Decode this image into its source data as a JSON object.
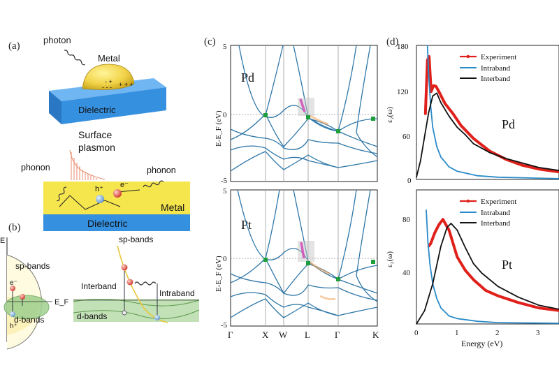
{
  "panel_labels": {
    "a": "(a)",
    "b": "(b)",
    "c": "(c)",
    "d": "(d)"
  },
  "panel_a": {
    "photon": "photon",
    "metal_top": "Metal",
    "dielectric_top": "Dielectric",
    "surface_plasmon_1": "Surface",
    "surface_plasmon_2": "plasmon",
    "phonon_left": "phonon",
    "phonon_right": "phonon",
    "hole": "h⁺",
    "electron": "e⁻",
    "metal_bottom": "Metal",
    "dielectric_bottom": "Dielectric"
  },
  "panel_b": {
    "energy_axis": "E",
    "sp_bands_left": "sp-bands",
    "d_bands_left": "d-bands",
    "fermi": "E_F",
    "electron": "e⁻",
    "hole": "h⁺",
    "sp_bands_right": "sp-bands",
    "interband": "Interband",
    "intraband": "Intraband",
    "d_bands_right": "d-bands"
  },
  "panel_c": {
    "ylabel": "E-E_F (eV)",
    "yticks": [
      "5",
      "0",
      "-5"
    ],
    "kpoints": [
      "Γ",
      "X",
      "W",
      "L",
      "Γ",
      "K"
    ],
    "metals": [
      "Pd",
      "Pt"
    ]
  },
  "panel_d": {
    "ylabel": "ε₂(ω)",
    "xlabel": "Energy (eV)",
    "xticks": [
      "0",
      "1",
      "2",
      "3"
    ],
    "legend": [
      "Experiment",
      "Intraband",
      "Interband"
    ],
    "colors": {
      "experiment": "#e0201b",
      "intraband": "#2a8bc9",
      "interband": "#111111"
    }
  },
  "chart_data": [
    {
      "type": "line",
      "metal": "Pd",
      "ylabel": "ε₂(ω)",
      "xlabel": "Energy (eV)",
      "xlim": [
        0,
        3.5
      ],
      "ylim": [
        0,
        180
      ],
      "yticks": [
        "180",
        "120",
        "60",
        "0"
      ],
      "legend_position": "top-right",
      "series": [
        {
          "name": "Experiment",
          "x": [
            0.22,
            0.27,
            0.31,
            0.36,
            0.42,
            0.48,
            0.55,
            0.7,
            0.9,
            1.1,
            1.4,
            1.8,
            2.2,
            2.6,
            3.0,
            3.5
          ],
          "y": [
            88,
            160,
            165,
            118,
            126,
            125,
            118,
            102,
            88,
            72,
            55,
            38,
            27,
            19,
            14,
            10
          ]
        },
        {
          "name": "Intraband",
          "x": [
            0.27,
            0.3,
            0.35,
            0.4,
            0.5,
            0.6,
            0.8,
            1.0,
            1.5,
            2.0,
            3.5
          ],
          "y": [
            180,
            140,
            98,
            70,
            44,
            30,
            17,
            11,
            5,
            3,
            1
          ]
        },
        {
          "name": "Interband",
          "x": [
            0.0,
            0.1,
            0.2,
            0.3,
            0.4,
            0.5,
            0.6,
            0.8,
            1.0,
            1.2,
            1.4,
            1.6,
            1.8,
            2.2,
            2.6,
            3.0,
            3.5
          ],
          "y": [
            3,
            25,
            58,
            90,
            112,
            116,
            103,
            85,
            70,
            60,
            48,
            42,
            36,
            28,
            22,
            16,
            12
          ]
        }
      ]
    },
    {
      "type": "line",
      "metal": "Pt",
      "ylabel": "ε₂(ω)",
      "xlabel": "Energy (eV)",
      "xlim": [
        0,
        3.5
      ],
      "ylim": [
        0,
        100
      ],
      "yticks": [
        "80",
        "40"
      ],
      "legend_position": "top-right",
      "series": [
        {
          "name": "Experiment",
          "x": [
            0.3,
            0.35,
            0.45,
            0.55,
            0.65,
            0.8,
            1.0,
            1.2,
            1.4,
            1.7,
            2.0,
            2.5,
            3.0,
            3.5
          ],
          "y": [
            58,
            60,
            68,
            74,
            78,
            70,
            50,
            40,
            33,
            25,
            21,
            16,
            12,
            10
          ]
        },
        {
          "name": "Intraband",
          "x": [
            0.24,
            0.28,
            0.33,
            0.4,
            0.5,
            0.6,
            0.8,
            1.0,
            1.5,
            2.0,
            3.5
          ],
          "y": [
            85,
            62,
            45,
            30,
            19,
            12,
            6,
            4,
            2,
            1,
            0.5
          ]
        },
        {
          "name": "Interband",
          "x": [
            0.0,
            0.2,
            0.4,
            0.6,
            0.75,
            0.85,
            1.0,
            1.2,
            1.4,
            1.6,
            2.0,
            2.5,
            3.0,
            3.5
          ],
          "y": [
            0,
            10,
            30,
            58,
            72,
            75,
            70,
            57,
            45,
            38,
            28,
            20,
            14,
            11
          ]
        }
      ]
    }
  ]
}
